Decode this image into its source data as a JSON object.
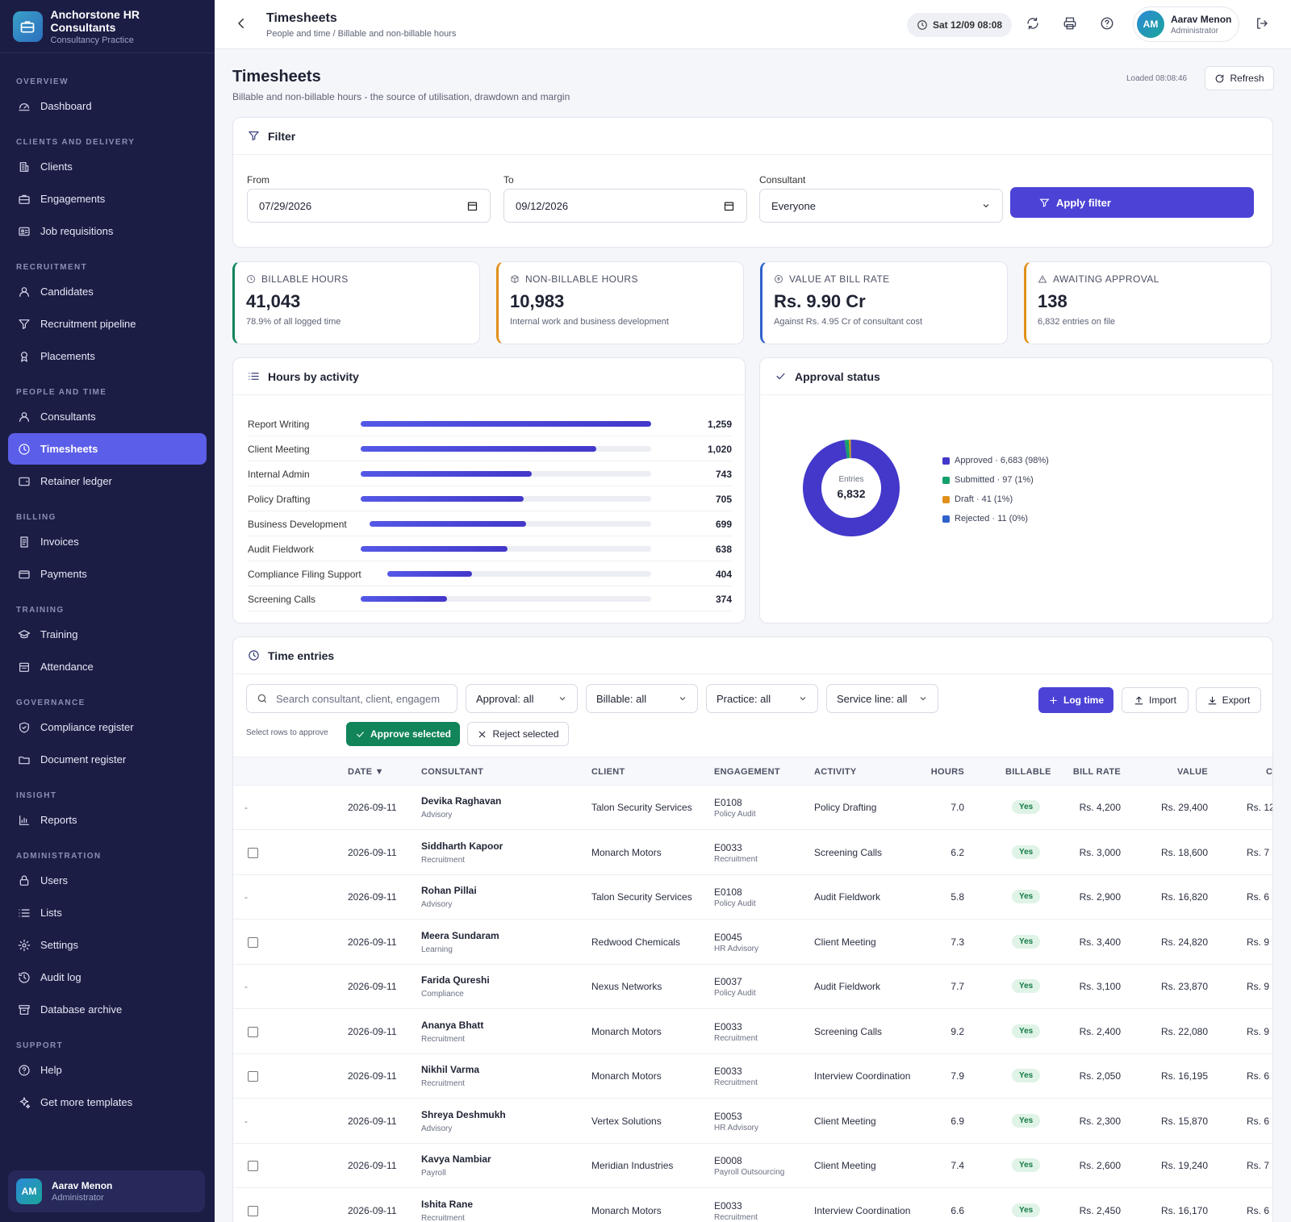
{
  "brand": {
    "title": "Anchorstone HR Consultants",
    "subtitle": "Consultancy Practice"
  },
  "nav": {
    "sections": [
      "OVERVIEW",
      "CLIENTS AND DELIVERY",
      "RECRUITMENT",
      "PEOPLE AND TIME",
      "BILLING",
      "TRAINING",
      "GOVERNANCE",
      "INSIGHT",
      "ADMINISTRATION",
      "SUPPORT"
    ],
    "items": [
      "Dashboard",
      "Clients",
      "Engagements",
      "Job requisitions",
      "Candidates",
      "Recruitment pipeline",
      "Placements",
      "Consultants",
      "Timesheets",
      "Retainer ledger",
      "Invoices",
      "Payments",
      "Training",
      "Attendance",
      "Compliance register",
      "Document register",
      "Reports",
      "Users",
      "Lists",
      "Settings",
      "Audit log",
      "Database archive",
      "Help",
      "Get more templates"
    ],
    "active": "Timesheets"
  },
  "user": {
    "initials": "AM",
    "name": "Aarav Menon",
    "role": "Administrator"
  },
  "topbar": {
    "title": "Timesheets",
    "breadcrumb": "People and time / Billable and non-billable hours",
    "datetime": "Sat 12/09 08:08"
  },
  "page": {
    "title": "Timesheets",
    "subtitle": "Billable and non-billable hours - the source of utilisation, drawdown and margin",
    "loaded": "Loaded 08:08:46",
    "refresh_label": "Refresh"
  },
  "filter": {
    "title": "Filter",
    "from_label": "From",
    "from_value": "07/29/2026",
    "to_label": "To",
    "to_value": "09/12/2026",
    "consultant_label": "Consultant",
    "consultant_value": "Everyone",
    "apply_label": "Apply filter"
  },
  "kpis": [
    {
      "label": "BILLABLE HOURS",
      "value": "41,043",
      "sub": "78.9% of all logged time",
      "color": "#12845a"
    },
    {
      "label": "NON-BILLABLE HOURS",
      "value": "10,983",
      "sub": "Internal work and business development",
      "color": "#e0901a"
    },
    {
      "label": "VALUE AT BILL RATE",
      "value": "Rs. 9.90 Cr",
      "sub": "Against Rs. 4.95 Cr of consultant cost",
      "color": "#2f63c9"
    },
    {
      "label": "AWAITING APPROVAL",
      "value": "138",
      "sub": "6,832 entries on file",
      "color": "#e0901a"
    }
  ],
  "activity": {
    "title": "Hours by activity",
    "max": 1259,
    "rows": [
      {
        "name": "Report Writing",
        "value": "1,259",
        "hours": 1259
      },
      {
        "name": "Client Meeting",
        "value": "1,020",
        "hours": 1020
      },
      {
        "name": "Internal Admin",
        "value": "743",
        "hours": 743
      },
      {
        "name": "Policy Drafting",
        "value": "705",
        "hours": 705
      },
      {
        "name": "Business Development",
        "value": "699",
        "hours": 699
      },
      {
        "name": "Audit Fieldwork",
        "value": "638",
        "hours": 638
      },
      {
        "name": "Compliance Filing Support",
        "value": "404",
        "hours": 404
      },
      {
        "name": "Screening Calls",
        "value": "374",
        "hours": 374
      }
    ]
  },
  "approval": {
    "title": "Approval status",
    "center_label": "Entries",
    "center_value": "6,832",
    "legend": [
      {
        "label": "Approved · 6,683 (98%)",
        "count": 6683,
        "color": "#4338ca"
      },
      {
        "label": "Submitted · 97 (1%)",
        "count": 97,
        "color": "#14a06a"
      },
      {
        "label": "Draft · 41 (1%)",
        "count": 41,
        "color": "#e0901a"
      },
      {
        "label": "Rejected · 11 (0%)",
        "count": 11,
        "color": "#2f63c9"
      }
    ]
  },
  "entries": {
    "title": "Time entries",
    "search_placeholder": "Search consultant, client, engagem",
    "filters": [
      "Approval: all",
      "Billable: all",
      "Practice: all",
      "Service line: all"
    ],
    "log_label": "Log time",
    "import_label": "Import",
    "export_label": "Export",
    "hint": "Select rows to approve",
    "approve_label": "Approve selected",
    "reject_label": "Reject selected",
    "columns": [
      "DATE ▼",
      "CONSULTANT",
      "CLIENT",
      "ENGAGEMENT",
      "ACTIVITY",
      "HOURS",
      "BILLABLE",
      "BILL RATE",
      "VALUE",
      "C"
    ],
    "rows": [
      {
        "check": false,
        "date": "2026-09-11",
        "name": "Devika Raghavan",
        "practice": "Advisory",
        "client": "Talon Security Services",
        "eng": "E0108",
        "eng_sub": "Policy Audit",
        "activity": "Policy Drafting",
        "hours": "7.0",
        "billable": "Yes",
        "rate": "Rs. 4,200",
        "value": "Rs. 29,400",
        "cost": "Rs. 12"
      },
      {
        "check": true,
        "date": "2026-09-11",
        "name": "Siddharth Kapoor",
        "practice": "Recruitment",
        "client": "Monarch Motors",
        "eng": "E0033",
        "eng_sub": "Recruitment",
        "activity": "Screening Calls",
        "hours": "6.2",
        "billable": "Yes",
        "rate": "Rs. 3,000",
        "value": "Rs. 18,600",
        "cost": "Rs. 7"
      },
      {
        "check": false,
        "date": "2026-09-11",
        "name": "Rohan Pillai",
        "practice": "Advisory",
        "client": "Talon Security Services",
        "eng": "E0108",
        "eng_sub": "Policy Audit",
        "activity": "Audit Fieldwork",
        "hours": "5.8",
        "billable": "Yes",
        "rate": "Rs. 2,900",
        "value": "Rs. 16,820",
        "cost": "Rs. 6"
      },
      {
        "check": true,
        "date": "2026-09-11",
        "name": "Meera Sundaram",
        "practice": "Learning",
        "client": "Redwood Chemicals",
        "eng": "E0045",
        "eng_sub": "HR Advisory",
        "activity": "Client Meeting",
        "hours": "7.3",
        "billable": "Yes",
        "rate": "Rs. 3,400",
        "value": "Rs. 24,820",
        "cost": "Rs. 9"
      },
      {
        "check": false,
        "date": "2026-09-11",
        "name": "Farida Qureshi",
        "practice": "Compliance",
        "client": "Nexus Networks",
        "eng": "E0037",
        "eng_sub": "Policy Audit",
        "activity": "Audit Fieldwork",
        "hours": "7.7",
        "billable": "Yes",
        "rate": "Rs. 3,100",
        "value": "Rs. 23,870",
        "cost": "Rs. 9"
      },
      {
        "check": true,
        "date": "2026-09-11",
        "name": "Ananya Bhatt",
        "practice": "Recruitment",
        "client": "Monarch Motors",
        "eng": "E0033",
        "eng_sub": "Recruitment",
        "activity": "Screening Calls",
        "hours": "9.2",
        "billable": "Yes",
        "rate": "Rs. 2,400",
        "value": "Rs. 22,080",
        "cost": "Rs. 9"
      },
      {
        "check": true,
        "date": "2026-09-11",
        "name": "Nikhil Varma",
        "practice": "Recruitment",
        "client": "Monarch Motors",
        "eng": "E0033",
        "eng_sub": "Recruitment",
        "activity": "Interview Coordination",
        "hours": "7.9",
        "billable": "Yes",
        "rate": "Rs. 2,050",
        "value": "Rs. 16,195",
        "cost": "Rs. 6"
      },
      {
        "check": false,
        "date": "2026-09-11",
        "name": "Shreya Deshmukh",
        "practice": "Advisory",
        "client": "Vertex Solutions",
        "eng": "E0053",
        "eng_sub": "HR Advisory",
        "activity": "Client Meeting",
        "hours": "6.9",
        "billable": "Yes",
        "rate": "Rs. 2,300",
        "value": "Rs. 15,870",
        "cost": "Rs. 6"
      },
      {
        "check": true,
        "date": "2026-09-11",
        "name": "Kavya Nambiar",
        "practice": "Payroll",
        "client": "Meridian Industries",
        "eng": "E0008",
        "eng_sub": "Payroll Outsourcing",
        "activity": "Client Meeting",
        "hours": "7.4",
        "billable": "Yes",
        "rate": "Rs. 2,600",
        "value": "Rs. 19,240",
        "cost": "Rs. 7"
      },
      {
        "check": true,
        "date": "2026-09-11",
        "name": "Ishita Rane",
        "practice": "Recruitment",
        "client": "Monarch Motors",
        "eng": "E0033",
        "eng_sub": "Recruitment",
        "activity": "Interview Coordination",
        "hours": "6.6",
        "billable": "Yes",
        "rate": "Rs. 2,450",
        "value": "Rs. 16,170",
        "cost": "Rs. 6"
      }
    ]
  }
}
